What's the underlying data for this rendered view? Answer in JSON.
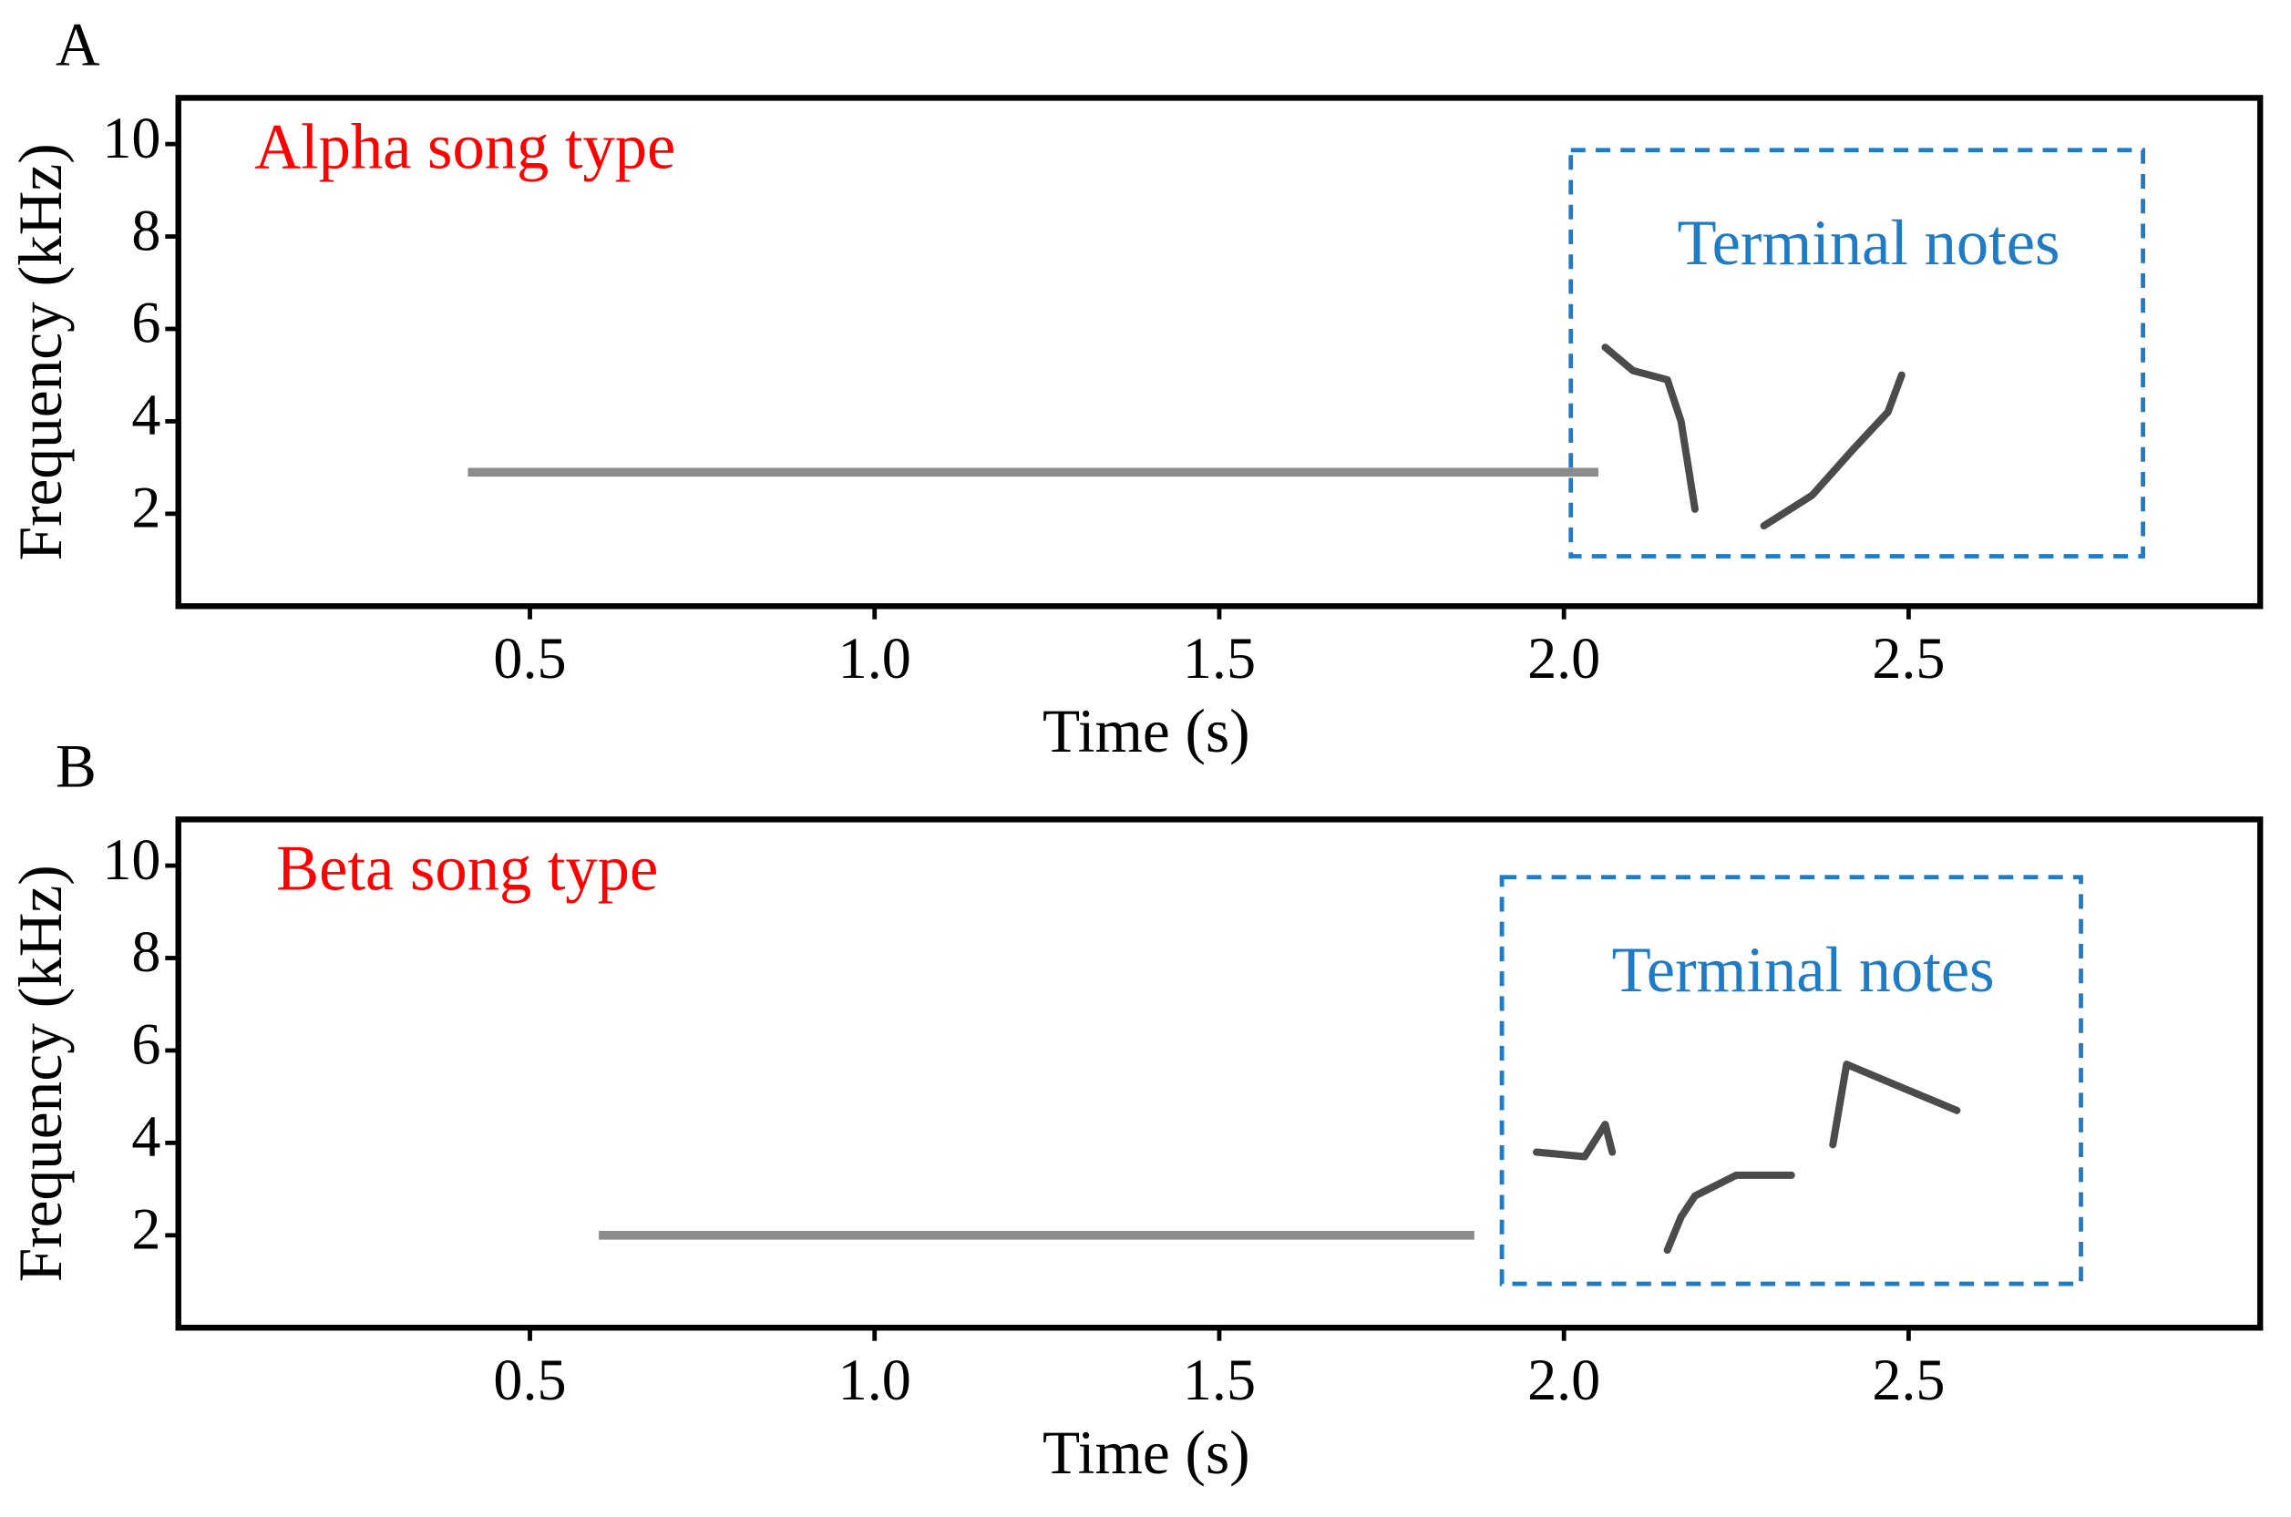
{
  "chart_data": [
    {
      "type": "spectrogram",
      "panel_label": "A",
      "title": "Alpha song type",
      "xlabel": "Time (s)",
      "ylabel": "Frequency (kHz)",
      "xlim": [
        -0.01,
        3.01
      ],
      "ylim": [
        0,
        11
      ],
      "xticks": [
        0.5,
        {
          "value": 1,
          "label": "1.0"
        },
        1.5,
        {
          "value": 2,
          "label": "2.0"
        },
        2.5
      ],
      "yticks": [
        2,
        4,
        6,
        8,
        10
      ],
      "series": [
        {
          "color": "#2b2b2b",
          "x": [
            0.41,
            2.05
          ],
          "values": [
            2.9,
            2.9
          ]
        },
        {
          "color": "#2b2b2b",
          "x": [
            2.06,
            2.1,
            2.15,
            2.17,
            2.19
          ],
          "values": [
            5.6,
            5.1,
            4.9,
            4.0,
            2.1
          ]
        },
        {
          "color": "#2b2b2b",
          "x": [
            2.29,
            2.36,
            2.42,
            2.47,
            2.49
          ],
          "values": [
            1.74,
            2.4,
            3.4,
            4.2,
            5.0
          ]
        }
      ],
      "region": {
        "label": "Terminal notes",
        "x": [
          2.01,
          2.84
        ],
        "y": [
          1.08,
          9.87
        ],
        "color": "#1f7bc4"
      }
    },
    {
      "type": "spectrogram",
      "panel_label": "B",
      "title": "Beta song type",
      "xlabel": "Time (s)",
      "ylabel": "Frequency (kHz)",
      "xlim": [
        -0.01,
        3.01
      ],
      "ylim": [
        0,
        11
      ],
      "xticks": [
        0.5,
        {
          "value": 1,
          "label": "1.0"
        },
        1.5,
        {
          "value": 2,
          "label": "2.0"
        },
        2.5
      ],
      "yticks": [
        2,
        4,
        6,
        8,
        10
      ],
      "series": [
        {
          "color": "#2b2b2b",
          "x": [
            0.6,
            1.87
          ],
          "values": [
            2.0,
            2.0
          ]
        },
        {
          "color": "#2b2b2b",
          "x": [
            1.96,
            2.03,
            2.06,
            2.07
          ],
          "values": [
            3.8,
            3.7,
            4.4,
            3.8
          ]
        },
        {
          "color": "#2b2b2b",
          "x": [
            2.15,
            2.17,
            2.19,
            2.25,
            2.33
          ],
          "values": [
            1.68,
            2.4,
            2.85,
            3.3,
            3.3
          ]
        },
        {
          "color": "#2b2b2b",
          "x": [
            2.39,
            2.41,
            2.49,
            2.57
          ],
          "values": [
            3.96,
            5.7,
            5.2,
            4.7
          ]
        }
      ],
      "region": {
        "label": "Terminal notes",
        "x": [
          1.91,
          2.75
        ],
        "y": [
          0.95,
          9.75
        ],
        "color": "#1f7bc4"
      }
    }
  ]
}
